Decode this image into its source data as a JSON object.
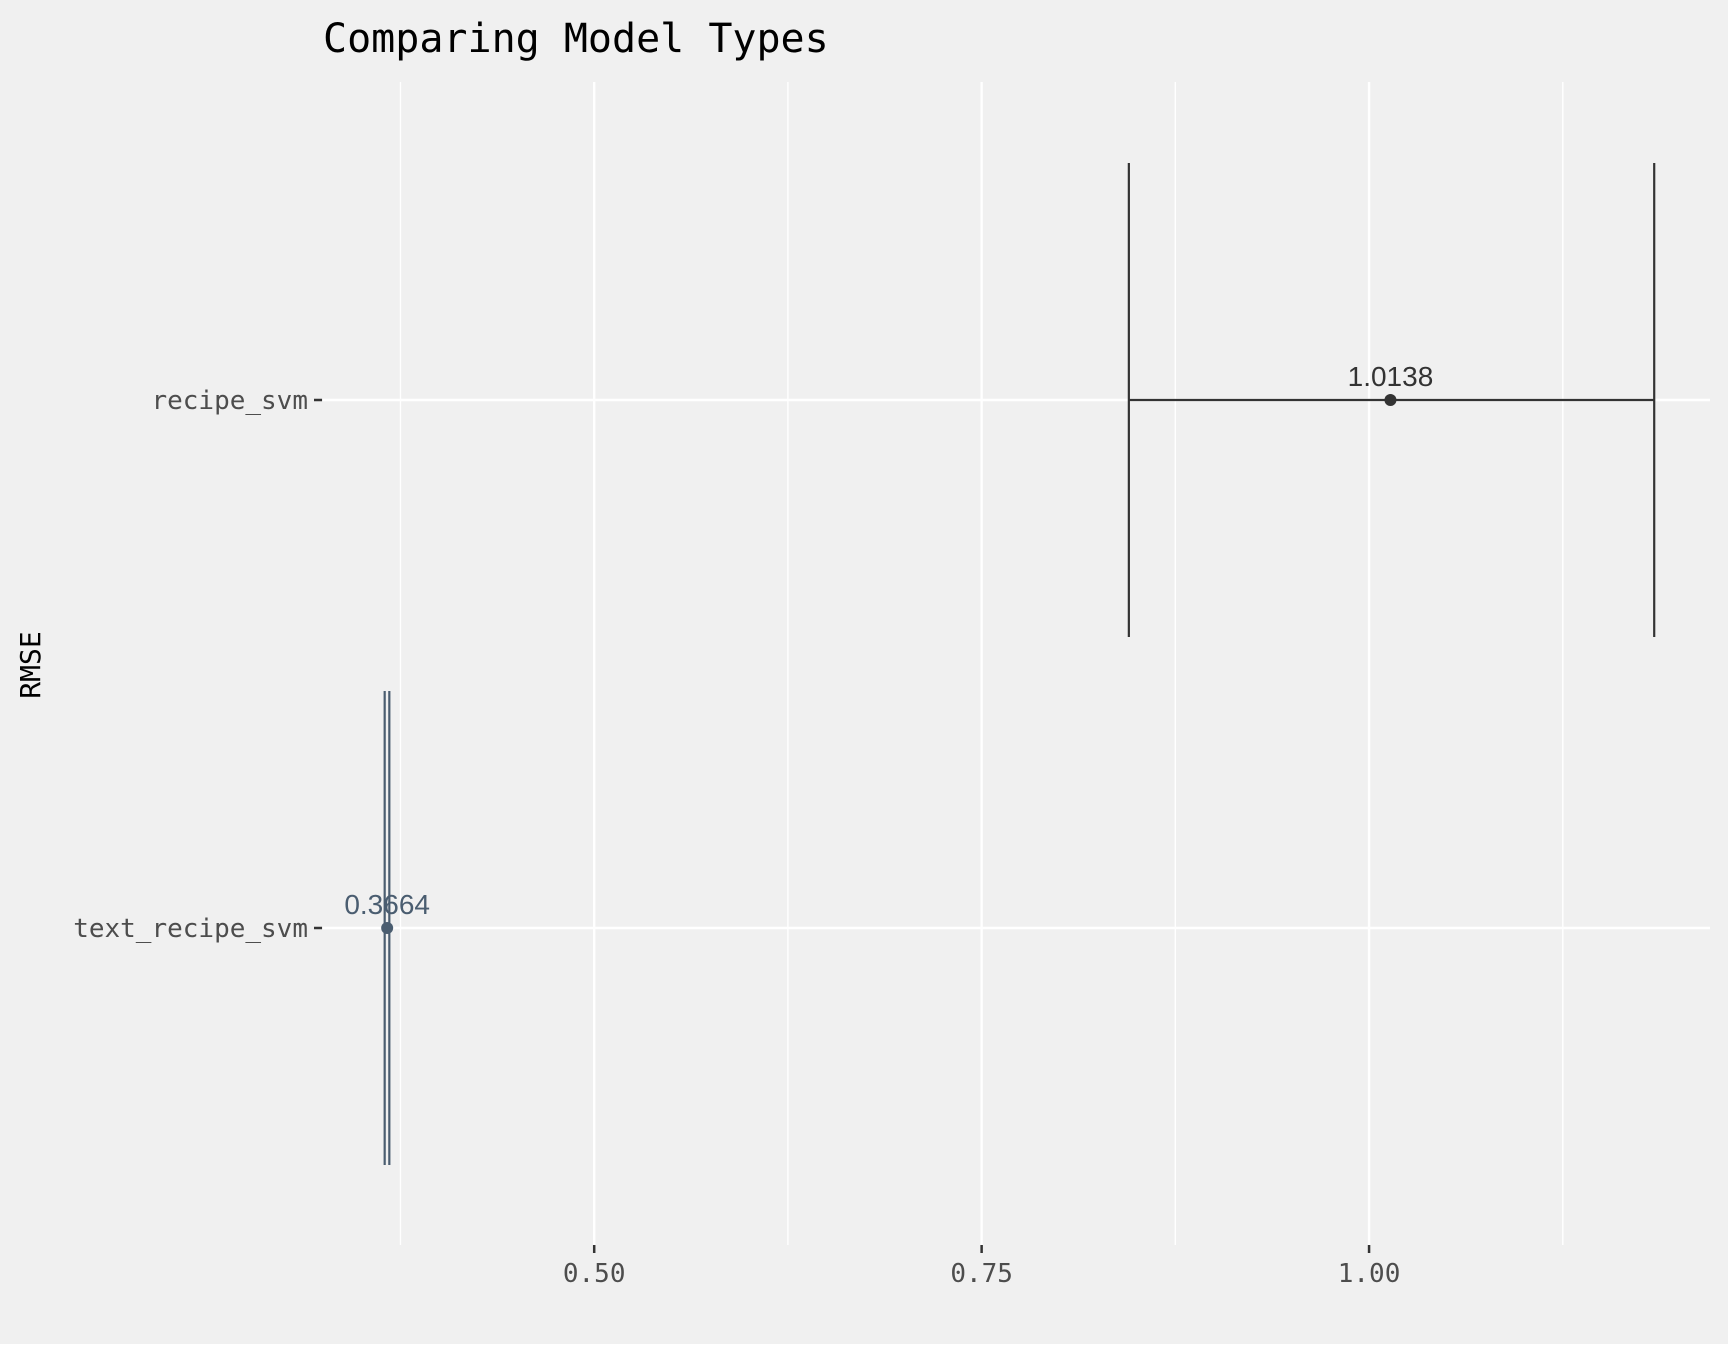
{
  "chart_data": {
    "type": "errorbar",
    "title": "Comparing Model Types",
    "xlabel": "",
    "ylabel": "RMSE",
    "xlim": [
      0.325,
      1.22
    ],
    "x_ticks": [
      0.5,
      0.75,
      1.0
    ],
    "x_tick_labels": [
      "0.50",
      "0.75",
      "1.00"
    ],
    "x_minor_gridlines": [
      0.375,
      0.625,
      0.875,
      1.125
    ],
    "categories": [
      "recipe_svm",
      "text_recipe_svm"
    ],
    "series": [
      {
        "category": "recipe_svm",
        "estimate": 1.0138,
        "lower": 0.845,
        "upper": 1.184,
        "label": "1.0138",
        "color": "#333333"
      },
      {
        "category": "text_recipe_svm",
        "estimate": 0.3664,
        "lower": 0.3648,
        "upper": 0.3678,
        "label": "0.3664",
        "color": "#4a5d70"
      }
    ],
    "grid": true,
    "legend": "none",
    "colors": {
      "panel_background": "#f0f0f0",
      "gridline": "#ffffff",
      "axis_tick": "#333333"
    }
  }
}
